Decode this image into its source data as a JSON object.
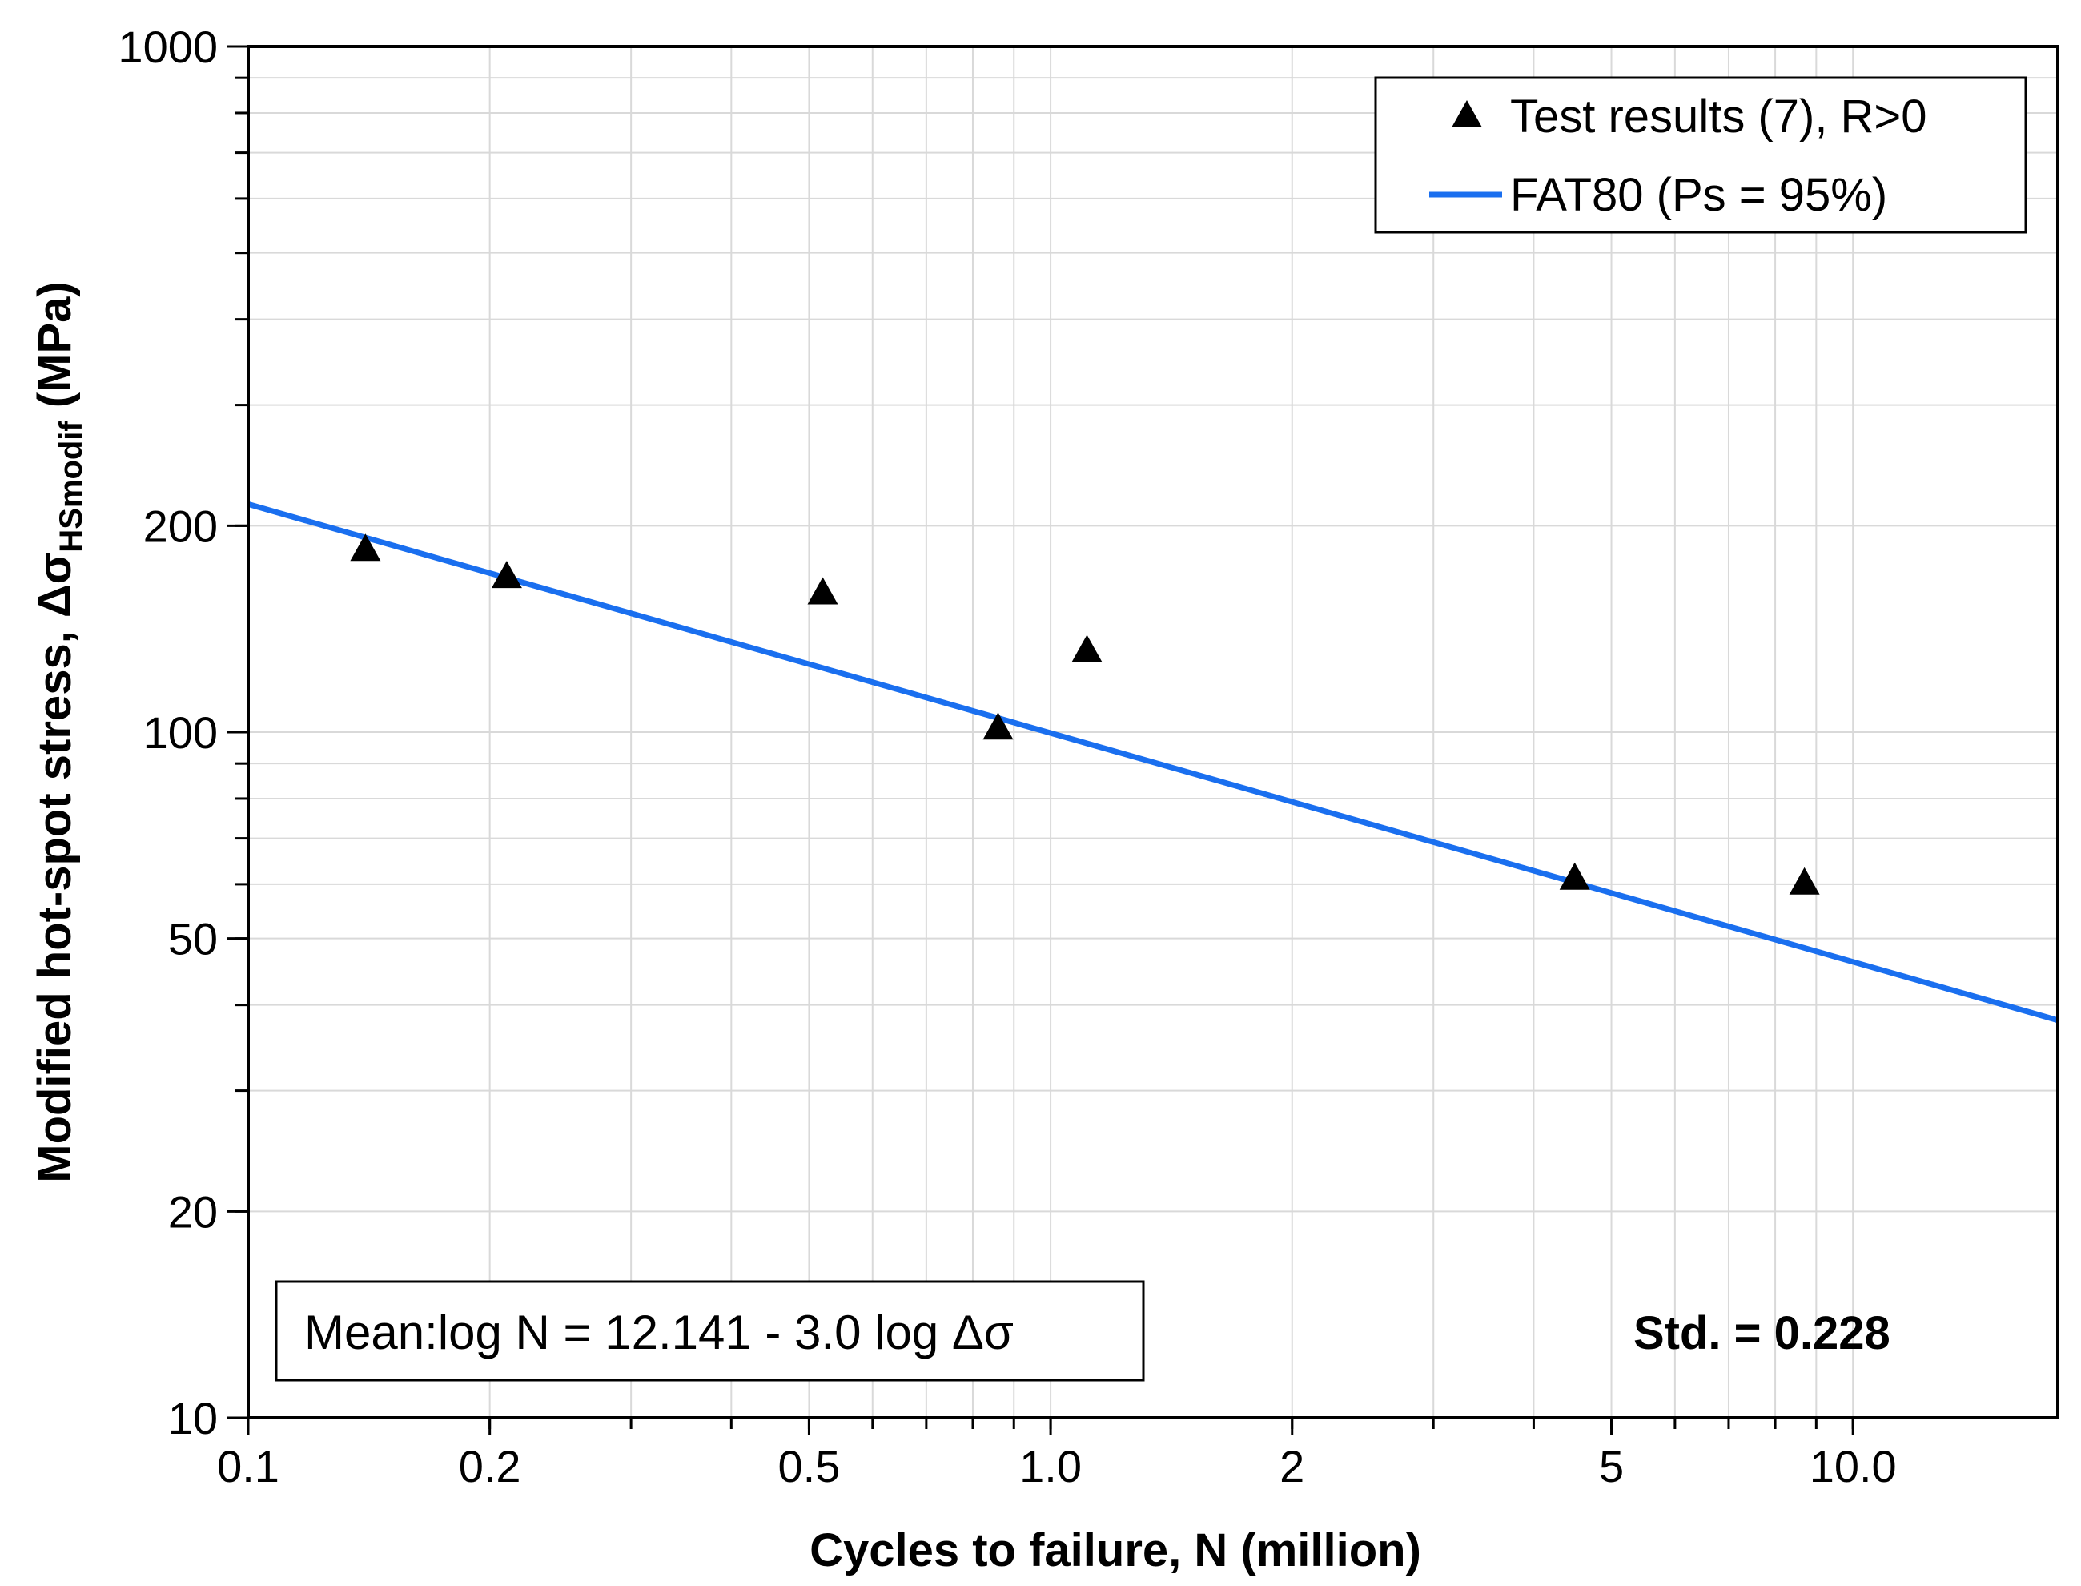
{
  "chart_data": {
    "type": "scatter",
    "title": "",
    "xlabel": "Cycles to failure, N (million)",
    "ylabel": {
      "main": "Modified hot-spot stress, Δσ",
      "subscript": "HSmodif",
      "unit": " (MPa)"
    },
    "x_scale": "log",
    "y_scale": "log",
    "xlim": [
      0.1,
      18
    ],
    "ylim": [
      10,
      1000
    ],
    "x_ticks": [
      {
        "value": 0.1,
        "label": "0.1"
      },
      {
        "value": 0.2,
        "label": "0.2"
      },
      {
        "value": 0.5,
        "label": "0.5"
      },
      {
        "value": 1.0,
        "label": "1.0"
      },
      {
        "value": 2,
        "label": "2"
      },
      {
        "value": 5,
        "label": "5"
      },
      {
        "value": 10,
        "label": "10.0"
      }
    ],
    "y_ticks": [
      {
        "value": 10,
        "label": "10"
      },
      {
        "value": 20,
        "label": "20"
      },
      {
        "value": 50,
        "label": "50"
      },
      {
        "value": 100,
        "label": "100"
      },
      {
        "value": 200,
        "label": "200"
      },
      {
        "value": 1000,
        "label": "1000"
      }
    ],
    "grid": true,
    "series": [
      {
        "name": "Test results (7), R>0",
        "kind": "scatter",
        "marker": "triangle",
        "color": "#000000",
        "x": [
          0.14,
          0.21,
          0.52,
          0.86,
          1.11,
          4.5,
          8.7
        ],
        "y": [
          184,
          168,
          159,
          101,
          131,
          61,
          60
        ]
      },
      {
        "name": "FAT80 (Ps = 95%)",
        "kind": "line",
        "color": "#1a6fef",
        "x": [
          0.1,
          18
        ],
        "y": [
          215,
          38
        ]
      }
    ],
    "legend": {
      "position": "top-right",
      "entries": [
        "Test results (7), R>0",
        "FAT80 (Ps = 95%)"
      ]
    },
    "annotations": {
      "equation": "Mean:log N = 12.141 - 3.0 log Δσ",
      "std": "Std. = 0.228"
    }
  }
}
